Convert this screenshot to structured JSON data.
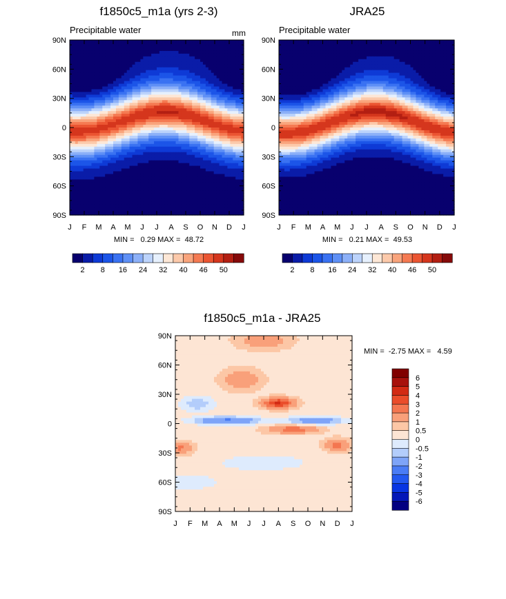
{
  "chart_data": [
    {
      "type": "heatmap",
      "title": "f1850c5_m1a (yrs 2-3)",
      "subtitle": "Precipitable water",
      "units": "mm",
      "x_tick_labels": [
        "J",
        "F",
        "M",
        "A",
        "M",
        "J",
        "J",
        "A",
        "S",
        "O",
        "N",
        "D",
        "J"
      ],
      "y_tick_labels": [
        "90S",
        "60S",
        "30S",
        "0",
        "30N",
        "60N",
        "90N"
      ],
      "y_range": [
        -90,
        90
      ],
      "x_range": [
        0,
        12
      ],
      "stats": {
        "label": "MIN =   0.29 MAX =  48.72",
        "min": 0.29,
        "max": 48.72
      },
      "field": {
        "kind": "climatology",
        "peak": 48,
        "itcz_lat": 6,
        "itcz_amp": 10,
        "width": 24,
        "polar_floor": 1
      },
      "colorbar": {
        "orientation": "horizontal",
        "tick_labels": [
          "2",
          "8",
          "16",
          "24",
          "32",
          "40",
          "46",
          "50"
        ]
      }
    },
    {
      "type": "heatmap",
      "title": "JRA25",
      "subtitle": "Precipitable water",
      "x_tick_labels": [
        "J",
        "F",
        "M",
        "A",
        "M",
        "J",
        "J",
        "A",
        "S",
        "O",
        "N",
        "D",
        "J"
      ],
      "y_tick_labels": [
        "90S",
        "60S",
        "30S",
        "0",
        "30N",
        "60N",
        "90N"
      ],
      "y_range": [
        -90,
        90
      ],
      "x_range": [
        0,
        12
      ],
      "stats": {
        "label": "MIN =   0.21 MAX =  49.53",
        "min": 0.21,
        "max": 49.53
      },
      "field": {
        "kind": "climatology",
        "peak": 49,
        "itcz_lat": 5,
        "itcz_amp": 11,
        "width": 23,
        "polar_floor": 0.6
      },
      "colorbar": {
        "orientation": "horizontal",
        "tick_labels": [
          "2",
          "8",
          "16",
          "24",
          "32",
          "40",
          "46",
          "50"
        ]
      }
    },
    {
      "type": "heatmap",
      "title": "f1850c5_m1a - JRA25",
      "x_tick_labels": [
        "J",
        "F",
        "M",
        "A",
        "M",
        "J",
        "J",
        "A",
        "S",
        "O",
        "N",
        "D",
        "J"
      ],
      "y_tick_labels": [
        "90S",
        "60S",
        "30S",
        "0",
        "30N",
        "60N",
        "90N"
      ],
      "y_range": [
        -90,
        90
      ],
      "x_range": [
        0,
        12
      ],
      "stats": {
        "label": "MIN =  -2.75 MAX =   4.59",
        "min": -2.75,
        "max": 4.59
      },
      "field": {
        "kind": "difference"
      },
      "colorbar": {
        "orientation": "vertical",
        "tick_labels": [
          "6",
          "5",
          "4",
          "3",
          "2",
          "1",
          "0.5",
          "0",
          "-0.5",
          "-1",
          "-2",
          "-3",
          "-4",
          "-5",
          "-6"
        ]
      }
    }
  ],
  "palettes": {
    "absolute": [
      "#08006e",
      "#0a1ca8",
      "#0e3ad6",
      "#1c55e8",
      "#3a72f2",
      "#5f90f6",
      "#8cb0f8",
      "#bcd3fb",
      "#e6f0fd",
      "#fde7d6",
      "#fcc9aa",
      "#f9a47c",
      "#f57a52",
      "#eb5532",
      "#d5361d",
      "#b31f12",
      "#850a0a"
    ],
    "difference": [
      "#020081",
      "#0317b8",
      "#0835e3",
      "#2358f0",
      "#4a7cf5",
      "#7ea4f8",
      "#b3cdfb",
      "#deebfd",
      "#fde5d4",
      "#fcc7a6",
      "#f9a07a",
      "#f47650",
      "#ea4c2a",
      "#d22a14",
      "#a7110c",
      "#800000"
    ]
  }
}
